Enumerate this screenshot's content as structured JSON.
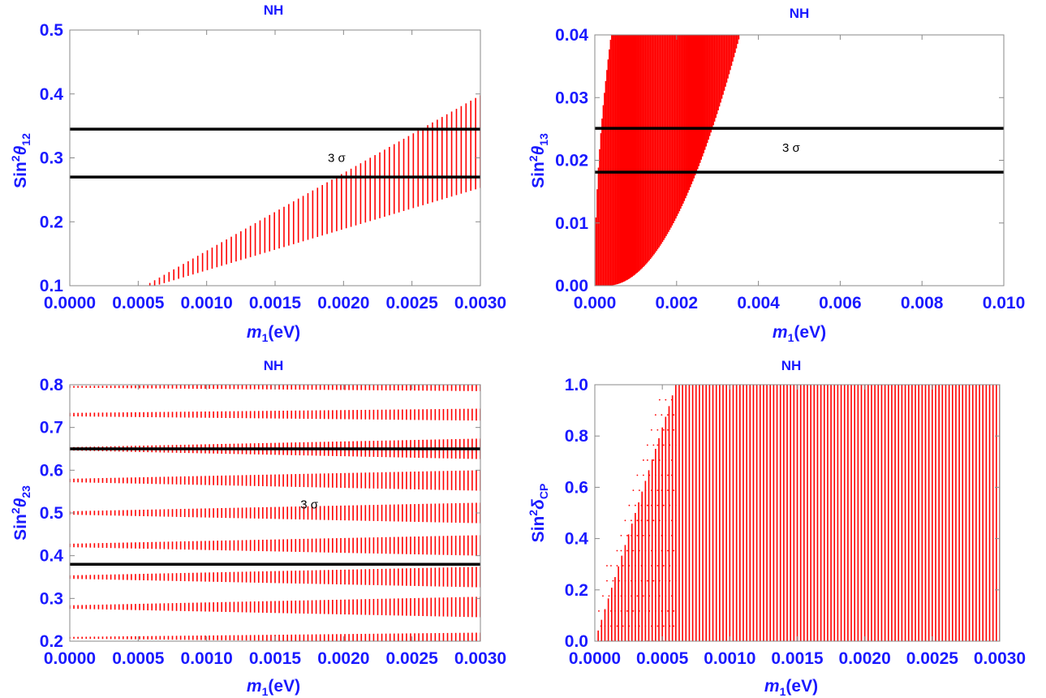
{
  "colors": {
    "text": "#1a1aff",
    "points": "#ff0000",
    "band": "#000000",
    "frame": "#888888"
  },
  "chart_data": [
    {
      "type": "scatter",
      "title": "NH",
      "xlabel": "m1(eV)",
      "ylabel": "Sin²θ12",
      "xlim": [
        0,
        0.003
      ],
      "ylim": [
        0.1,
        0.5
      ],
      "xticks": [
        "0.0000",
        "0.0005",
        "0.0010",
        "0.0015",
        "0.0020",
        "0.0025",
        "0.0030"
      ],
      "xtick_values": [
        0,
        0.0005,
        0.001,
        0.0015,
        0.002,
        0.0025,
        0.003
      ],
      "yticks": [
        "0.1",
        "0.2",
        "0.3",
        "0.4",
        "0.5"
      ],
      "ytick_values": [
        0.1,
        0.2,
        0.3,
        0.4,
        0.5
      ],
      "hlines": [
        0.345,
        0.27
      ],
      "annotation": "3 σ",
      "annotation_pos": [
        0.00195,
        0.3
      ],
      "bands": [
        {
          "x": [
            0.00055,
            0.003
          ],
          "low": [
            0.1,
            0.258
          ],
          "high": [
            0.1,
            0.398
          ],
          "n": 70,
          "lowstart": 0.00055
        }
      ]
    },
    {
      "type": "scatter",
      "title": "NH",
      "xlabel": "m1(eV)",
      "ylabel": "Sin²θ13",
      "xlim": [
        0,
        0.01
      ],
      "ylim": [
        0,
        0.04
      ],
      "xticks": [
        "0.000",
        "0.002",
        "0.004",
        "0.006",
        "0.008",
        "0.010"
      ],
      "xtick_values": [
        0,
        0.002,
        0.004,
        0.006,
        0.008,
        0.01
      ],
      "yticks": [
        "0.00",
        "0.01",
        "0.02",
        "0.03",
        "0.04"
      ],
      "ytick_values": [
        0,
        0.01,
        0.02,
        0.03,
        0.04
      ],
      "hlines": [
        0.0251,
        0.0181
      ],
      "annotation": "3 σ",
      "annotation_pos": [
        0.0048,
        0.022
      ],
      "parabola": {
        "x_end": 0.00355,
        "left_at_top": 0.0004,
        "right_at_top": 0.00355,
        "right_root": 0.0003,
        "n": 120
      }
    },
    {
      "type": "scatter",
      "title": "NH",
      "xlabel": "m1(eV)",
      "ylabel": "Sin²θ23",
      "xlim": [
        0,
        0.003
      ],
      "ylim": [
        0.2,
        0.8
      ],
      "xticks": [
        "0.0000",
        "0.0005",
        "0.0010",
        "0.0015",
        "0.0020",
        "0.0025",
        "0.0030"
      ],
      "xtick_values": [
        0,
        0.0005,
        0.001,
        0.0015,
        0.002,
        0.0025,
        0.003
      ],
      "yticks": [
        "0.2",
        "0.3",
        "0.4",
        "0.5",
        "0.6",
        "0.7",
        "0.8"
      ],
      "ytick_values": [
        0.2,
        0.3,
        0.4,
        0.5,
        0.6,
        0.7,
        0.8
      ],
      "hlines": [
        0.65,
        0.38
      ],
      "annotation": "3 σ",
      "annotation_pos": [
        0.00175,
        0.52
      ],
      "strips": [
        {
          "center": 0.208,
          "half_width": [
            0.002,
            0.012
          ]
        },
        {
          "center": 0.28,
          "half_width": [
            0.004,
            0.024
          ]
        },
        {
          "center": 0.35,
          "half_width": [
            0.004,
            0.024
          ]
        },
        {
          "center": 0.424,
          "half_width": [
            0.004,
            0.024
          ]
        },
        {
          "center": 0.5,
          "half_width": [
            0.004,
            0.024
          ]
        },
        {
          "center": 0.576,
          "half_width": [
            0.004,
            0.024
          ]
        },
        {
          "center": 0.65,
          "half_width": [
            0.004,
            0.024
          ]
        },
        {
          "center": 0.73,
          "half_width": [
            0.004,
            0.014
          ]
        },
        {
          "center": 0.795,
          "half_width": [
            0.002,
            0.01
          ]
        }
      ],
      "n": 100
    },
    {
      "type": "scatter",
      "title": "NH",
      "xlabel": "m1(eV)",
      "ylabel": "Sin²δCP",
      "xlim": [
        0,
        0.003
      ],
      "ylim": [
        0,
        1
      ],
      "xticks": [
        "0.0000",
        "0.0005",
        "0.0010",
        "0.0015",
        "0.0020",
        "0.0025",
        "0.0030"
      ],
      "xtick_values": [
        0,
        0.0005,
        0.001,
        0.0015,
        0.002,
        0.0025,
        0.003
      ],
      "yticks": [
        "0.0",
        "0.2",
        "0.4",
        "0.6",
        "0.8",
        "1.0"
      ],
      "ytick_values": [
        0,
        0.2,
        0.4,
        0.6,
        0.8,
        1.0
      ],
      "wedge": {
        "x_full": 0.0006,
        "n": 120
      }
    }
  ]
}
